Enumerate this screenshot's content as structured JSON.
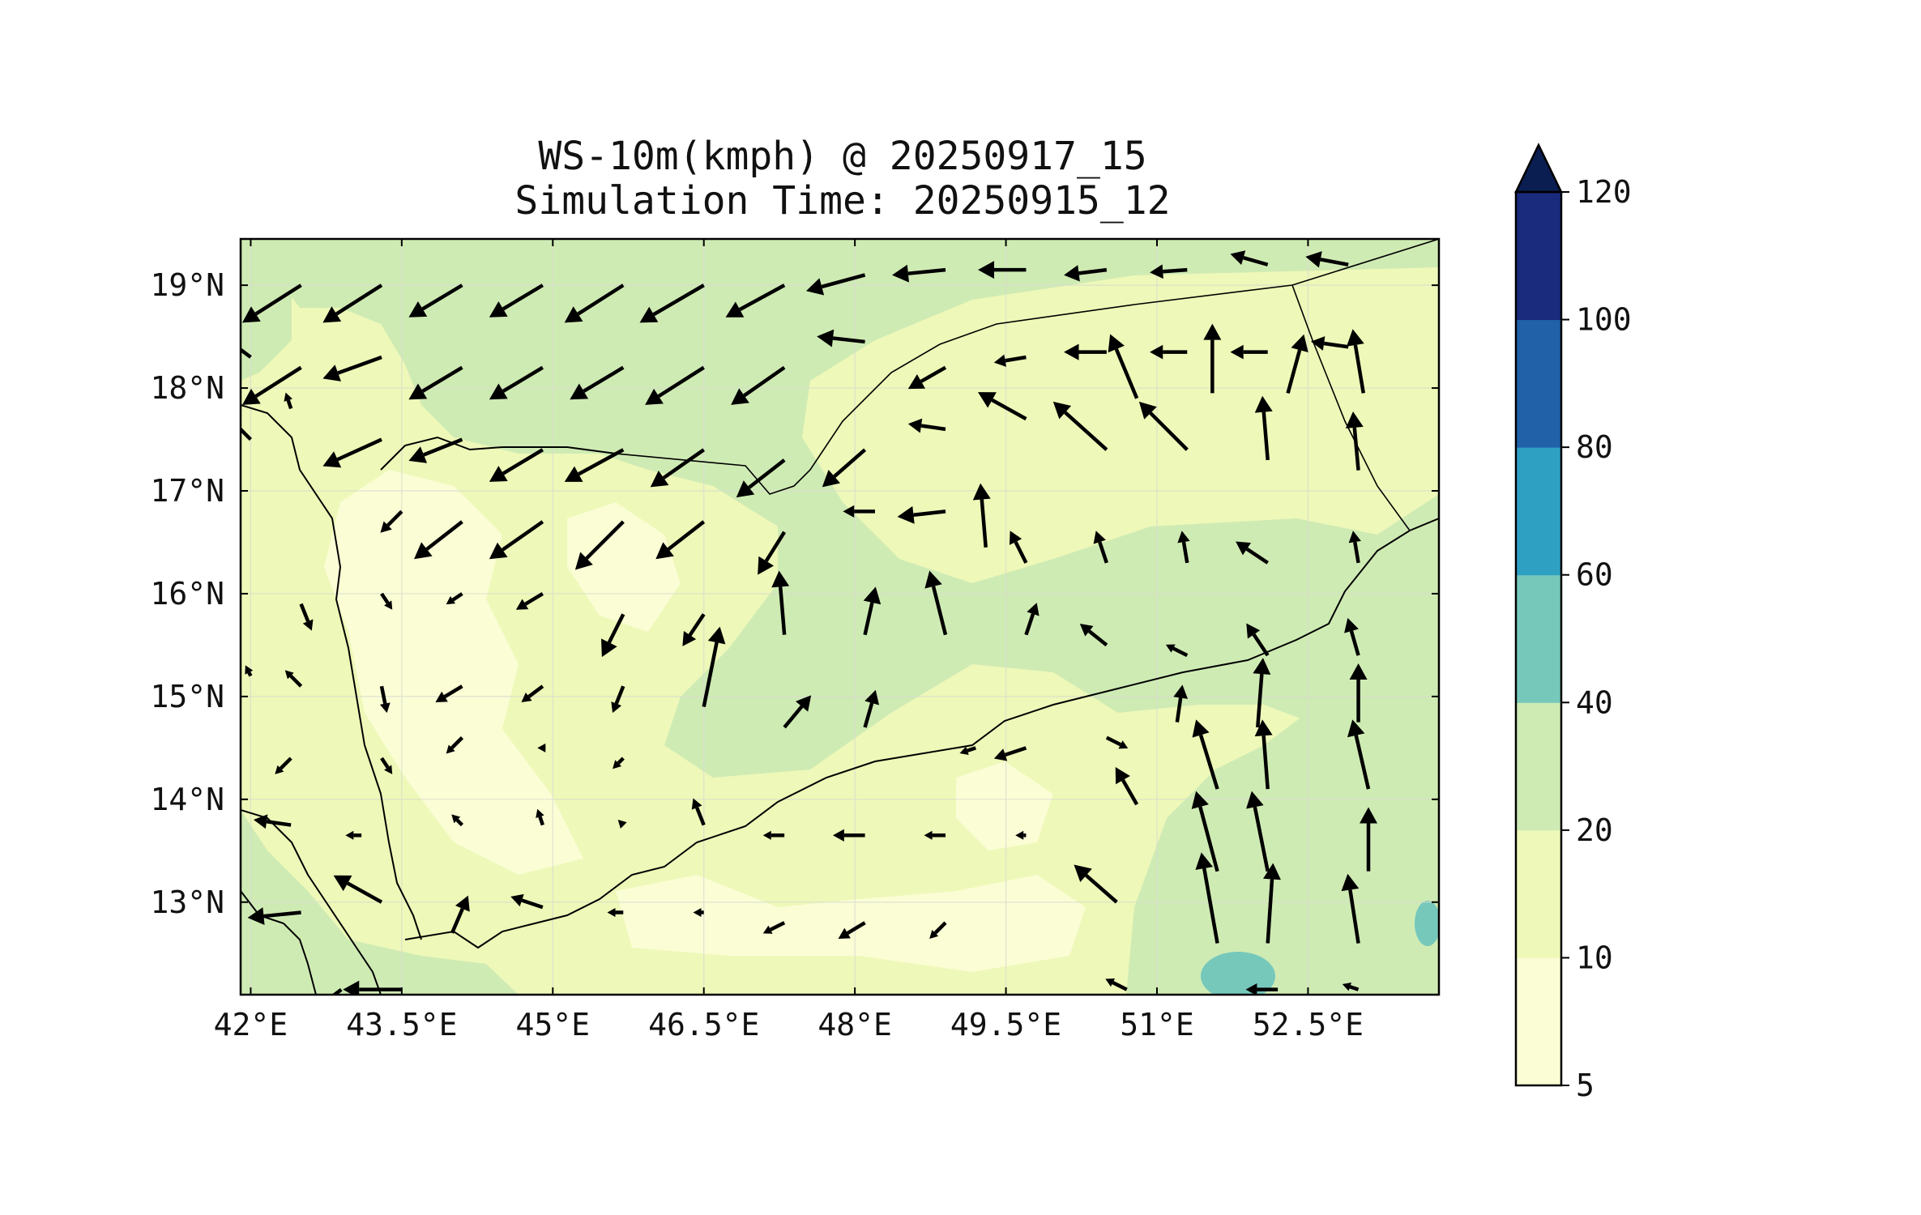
{
  "chart_data": {
    "type": "heatmap",
    "title": "WS-10m(kmph) @ 20250917_15",
    "subtitle": "Simulation Time: 20250915_12",
    "x_ticks": [
      "42°E",
      "43.5°E",
      "45°E",
      "46.5°E",
      "48°E",
      "49.5°E",
      "51°E",
      "52.5°E"
    ],
    "x_tick_values": [
      42,
      43.5,
      45,
      46.5,
      48,
      49.5,
      51,
      52.5
    ],
    "y_ticks": [
      "19°N",
      "18°N",
      "17°N",
      "16°N",
      "15°N",
      "14°N",
      "13°N"
    ],
    "y_tick_values": [
      19,
      18,
      17,
      16,
      15,
      14,
      13
    ],
    "xlim": [
      41.9,
      53.8
    ],
    "ylim": [
      12.1,
      19.45
    ],
    "grid": true,
    "colorbar": {
      "levels": [
        5,
        10,
        20,
        40,
        60,
        80,
        100,
        120
      ],
      "tick_labels": [
        "5",
        "10",
        "20",
        "40",
        "60",
        "80",
        "100",
        "120"
      ],
      "colors": [
        "#fbfdd5",
        "#eef8b8",
        "#cfebb4",
        "#76c8bb",
        "#2ea1c3",
        "#2161a8",
        "#1a2a7c"
      ],
      "extend_color": "#0b1e52",
      "extend": "max"
    },
    "background_color": "#eef8b8",
    "wind_vectors": [
      {
        "lon": 42.5,
        "lat": 19.0,
        "u": -22,
        "v": -14
      },
      {
        "lon": 43.3,
        "lat": 19.0,
        "u": -22,
        "v": -14
      },
      {
        "lon": 44.1,
        "lat": 19.0,
        "u": -20,
        "v": -12
      },
      {
        "lon": 44.9,
        "lat": 19.0,
        "u": -20,
        "v": -12
      },
      {
        "lon": 45.7,
        "lat": 19.0,
        "u": -22,
        "v": -14
      },
      {
        "lon": 46.5,
        "lat": 19.0,
        "u": -24,
        "v": -14
      },
      {
        "lon": 47.3,
        "lat": 19.0,
        "u": -22,
        "v": -12
      },
      {
        "lon": 48.1,
        "lat": 19.1,
        "u": -22,
        "v": -6
      },
      {
        "lon": 48.9,
        "lat": 19.15,
        "u": -20,
        "v": -2
      },
      {
        "lon": 49.7,
        "lat": 19.15,
        "u": -18,
        "v": 0
      },
      {
        "lon": 50.5,
        "lat": 19.15,
        "u": -16,
        "v": -2
      },
      {
        "lon": 51.3,
        "lat": 19.15,
        "u": -14,
        "v": -1
      },
      {
        "lon": 52.1,
        "lat": 19.2,
        "u": -14,
        "v": 4
      },
      {
        "lon": 52.9,
        "lat": 19.2,
        "u": -16,
        "v": 3
      },
      {
        "lon": 42.0,
        "lat": 18.3,
        "u": -8,
        "v": 6
      },
      {
        "lon": 42.5,
        "lat": 18.2,
        "u": -22,
        "v": -14
      },
      {
        "lon": 43.3,
        "lat": 18.3,
        "u": -22,
        "v": -8
      },
      {
        "lon": 44.1,
        "lat": 18.2,
        "u": -20,
        "v": -12
      },
      {
        "lon": 44.9,
        "lat": 18.2,
        "u": -20,
        "v": -12
      },
      {
        "lon": 45.7,
        "lat": 18.2,
        "u": -20,
        "v": -12
      },
      {
        "lon": 46.5,
        "lat": 18.2,
        "u": -22,
        "v": -14
      },
      {
        "lon": 47.3,
        "lat": 18.2,
        "u": -20,
        "v": -14
      },
      {
        "lon": 48.1,
        "lat": 18.45,
        "u": -18,
        "v": 2
      },
      {
        "lon": 48.9,
        "lat": 18.2,
        "u": -14,
        "v": -8
      },
      {
        "lon": 49.7,
        "lat": 18.3,
        "u": -12,
        "v": -2
      },
      {
        "lon": 50.5,
        "lat": 18.35,
        "u": -16,
        "v": 0
      },
      {
        "lon": 50.8,
        "lat": 17.9,
        "u": -10,
        "v": 24
      },
      {
        "lon": 51.3,
        "lat": 18.35,
        "u": -14,
        "v": 0
      },
      {
        "lon": 51.55,
        "lat": 17.95,
        "u": 0,
        "v": 26
      },
      {
        "lon": 52.1,
        "lat": 18.35,
        "u": -14,
        "v": 0
      },
      {
        "lon": 52.3,
        "lat": 17.95,
        "u": 6,
        "v": 22
      },
      {
        "lon": 52.9,
        "lat": 18.4,
        "u": -14,
        "v": 2
      },
      {
        "lon": 53.05,
        "lat": 17.95,
        "u": -4,
        "v": 24
      },
      {
        "lon": 42.0,
        "lat": 17.5,
        "u": -8,
        "v": 8
      },
      {
        "lon": 42.4,
        "lat": 17.8,
        "u": -2,
        "v": 6
      },
      {
        "lon": 43.3,
        "lat": 17.5,
        "u": -22,
        "v": -10
      },
      {
        "lon": 44.1,
        "lat": 17.5,
        "u": -20,
        "v": -8
      },
      {
        "lon": 44.9,
        "lat": 17.4,
        "u": -20,
        "v": -12
      },
      {
        "lon": 45.7,
        "lat": 17.4,
        "u": -22,
        "v": -12
      },
      {
        "lon": 46.5,
        "lat": 17.4,
        "u": -20,
        "v": -14
      },
      {
        "lon": 47.3,
        "lat": 17.3,
        "u": -18,
        "v": -14
      },
      {
        "lon": 48.1,
        "lat": 17.4,
        "u": -16,
        "v": -14
      },
      {
        "lon": 48.9,
        "lat": 17.6,
        "u": -14,
        "v": 2
      },
      {
        "lon": 49.7,
        "lat": 17.7,
        "u": -18,
        "v": 10
      },
      {
        "lon": 50.5,
        "lat": 17.4,
        "u": -20,
        "v": 18
      },
      {
        "lon": 51.3,
        "lat": 17.4,
        "u": -18,
        "v": 18
      },
      {
        "lon": 52.1,
        "lat": 17.3,
        "u": -2,
        "v": 24
      },
      {
        "lon": 53.0,
        "lat": 17.2,
        "u": -2,
        "v": 22
      },
      {
        "lon": 43.5,
        "lat": 16.8,
        "u": -8,
        "v": -8
      },
      {
        "lon": 44.1,
        "lat": 16.7,
        "u": -18,
        "v": -14
      },
      {
        "lon": 44.9,
        "lat": 16.7,
        "u": -20,
        "v": -14
      },
      {
        "lon": 45.7,
        "lat": 16.7,
        "u": -18,
        "v": -18
      },
      {
        "lon": 46.5,
        "lat": 16.7,
        "u": -18,
        "v": -14
      },
      {
        "lon": 47.3,
        "lat": 16.6,
        "u": -10,
        "v": -16
      },
      {
        "lon": 48.2,
        "lat": 16.8,
        "u": -12,
        "v": 0
      },
      {
        "lon": 48.9,
        "lat": 16.8,
        "u": -18,
        "v": -2
      },
      {
        "lon": 49.3,
        "lat": 16.45,
        "u": -2,
        "v": 24
      },
      {
        "lon": 49.7,
        "lat": 16.3,
        "u": -6,
        "v": 12
      },
      {
        "lon": 50.5,
        "lat": 16.3,
        "u": -4,
        "v": 12
      },
      {
        "lon": 51.3,
        "lat": 16.3,
        "u": -2,
        "v": 12
      },
      {
        "lon": 52.1,
        "lat": 16.3,
        "u": -12,
        "v": 8
      },
      {
        "lon": 53.0,
        "lat": 16.3,
        "u": -2,
        "v": 12
      },
      {
        "lon": 42.5,
        "lat": 15.9,
        "u": 4,
        "v": -10
      },
      {
        "lon": 43.3,
        "lat": 16.0,
        "u": 4,
        "v": -6
      },
      {
        "lon": 44.1,
        "lat": 16.0,
        "u": -6,
        "v": -4
      },
      {
        "lon": 44.9,
        "lat": 16.0,
        "u": -10,
        "v": -6
      },
      {
        "lon": 45.7,
        "lat": 15.8,
        "u": -8,
        "v": -16
      },
      {
        "lon": 46.5,
        "lat": 15.8,
        "u": -8,
        "v": -12
      },
      {
        "lon": 47.3,
        "lat": 15.6,
        "u": -2,
        "v": 24
      },
      {
        "lon": 48.1,
        "lat": 15.6,
        "u": 4,
        "v": 18
      },
      {
        "lon": 48.9,
        "lat": 15.6,
        "u": -6,
        "v": 24
      },
      {
        "lon": 49.7,
        "lat": 15.6,
        "u": 4,
        "v": 12
      },
      {
        "lon": 50.5,
        "lat": 15.5,
        "u": -10,
        "v": 8
      },
      {
        "lon": 51.3,
        "lat": 15.4,
        "u": -8,
        "v": 4
      },
      {
        "lon": 52.1,
        "lat": 15.4,
        "u": -8,
        "v": 12
      },
      {
        "lon": 53.0,
        "lat": 15.4,
        "u": -4,
        "v": 14
      },
      {
        "lon": 42.0,
        "lat": 15.2,
        "u": -2,
        "v": 4
      },
      {
        "lon": 42.5,
        "lat": 15.1,
        "u": -6,
        "v": 6
      },
      {
        "lon": 43.3,
        "lat": 15.1,
        "u": 2,
        "v": -10
      },
      {
        "lon": 44.1,
        "lat": 15.1,
        "u": -10,
        "v": -6
      },
      {
        "lon": 44.9,
        "lat": 15.1,
        "u": -8,
        "v": -6
      },
      {
        "lon": 45.7,
        "lat": 15.1,
        "u": -4,
        "v": -10
      },
      {
        "lon": 46.5,
        "lat": 14.9,
        "u": 6,
        "v": 30
      },
      {
        "lon": 47.3,
        "lat": 14.7,
        "u": 10,
        "v": 12
      },
      {
        "lon": 48.1,
        "lat": 14.7,
        "u": 4,
        "v": 14
      },
      {
        "lon": 51.2,
        "lat": 14.75,
        "u": 2,
        "v": 14
      },
      {
        "lon": 52.0,
        "lat": 14.7,
        "u": 2,
        "v": 26
      },
      {
        "lon": 53.0,
        "lat": 14.75,
        "u": 0,
        "v": 22
      },
      {
        "lon": 42.4,
        "lat": 14.4,
        "u": -6,
        "v": -6
      },
      {
        "lon": 43.3,
        "lat": 14.4,
        "u": 4,
        "v": -6
      },
      {
        "lon": 44.1,
        "lat": 14.6,
        "u": -6,
        "v": -6
      },
      {
        "lon": 44.9,
        "lat": 14.5,
        "u": -2,
        "v": 0
      },
      {
        "lon": 45.7,
        "lat": 14.4,
        "u": -4,
        "v": -4
      },
      {
        "lon": 49.2,
        "lat": 14.5,
        "u": -6,
        "v": -2
      },
      {
        "lon": 49.7,
        "lat": 14.5,
        "u": -12,
        "v": -4
      },
      {
        "lon": 50.5,
        "lat": 14.6,
        "u": 8,
        "v": -4
      },
      {
        "lon": 50.8,
        "lat": 13.95,
        "u": -8,
        "v": 14
      },
      {
        "lon": 51.6,
        "lat": 14.1,
        "u": -8,
        "v": 26
      },
      {
        "lon": 52.1,
        "lat": 14.1,
        "u": -2,
        "v": 26
      },
      {
        "lon": 53.1,
        "lat": 14.1,
        "u": -6,
        "v": 26
      },
      {
        "lon": 42.4,
        "lat": 13.75,
        "u": -14,
        "v": 2
      },
      {
        "lon": 43.1,
        "lat": 13.65,
        "u": -6,
        "v": 0
      },
      {
        "lon": 44.1,
        "lat": 13.75,
        "u": -4,
        "v": 4
      },
      {
        "lon": 44.9,
        "lat": 13.75,
        "u": -2,
        "v": 6
      },
      {
        "lon": 45.7,
        "lat": 13.75,
        "u": -2,
        "v": 2
      },
      {
        "lon": 46.5,
        "lat": 13.75,
        "u": -4,
        "v": 10
      },
      {
        "lon": 47.3,
        "lat": 13.65,
        "u": -8,
        "v": 0
      },
      {
        "lon": 48.1,
        "lat": 13.65,
        "u": -12,
        "v": 0
      },
      {
        "lon": 48.9,
        "lat": 13.65,
        "u": -8,
        "v": 0
      },
      {
        "lon": 49.7,
        "lat": 13.65,
        "u": -4,
        "v": 0
      },
      {
        "lon": 51.6,
        "lat": 13.3,
        "u": -8,
        "v": 30
      },
      {
        "lon": 52.1,
        "lat": 13.3,
        "u": -6,
        "v": 30
      },
      {
        "lon": 53.1,
        "lat": 13.3,
        "u": 0,
        "v": 24
      },
      {
        "lon": 42.5,
        "lat": 12.9,
        "u": -20,
        "v": -2
      },
      {
        "lon": 43.3,
        "lat": 13.0,
        "u": -18,
        "v": 10
      },
      {
        "lon": 44.0,
        "lat": 12.7,
        "u": 6,
        "v": 14
      },
      {
        "lon": 44.9,
        "lat": 12.95,
        "u": -12,
        "v": 4
      },
      {
        "lon": 45.7,
        "lat": 12.9,
        "u": -6,
        "v": 0
      },
      {
        "lon": 46.5,
        "lat": 12.9,
        "u": -4,
        "v": 0
      },
      {
        "lon": 47.3,
        "lat": 12.8,
        "u": -8,
        "v": -4
      },
      {
        "lon": 48.1,
        "lat": 12.8,
        "u": -10,
        "v": -6
      },
      {
        "lon": 48.9,
        "lat": 12.8,
        "u": -6,
        "v": -6
      },
      {
        "lon": 50.6,
        "lat": 13.0,
        "u": -16,
        "v": 14
      },
      {
        "lon": 51.6,
        "lat": 12.6,
        "u": -6,
        "v": 34
      },
      {
        "lon": 52.1,
        "lat": 12.6,
        "u": 2,
        "v": 30
      },
      {
        "lon": 53.0,
        "lat": 12.6,
        "u": -4,
        "v": 26
      },
      {
        "lon": 42.9,
        "lat": 12.15,
        "u": -8,
        "v": -6
      },
      {
        "lon": 43.5,
        "lat": 12.15,
        "u": -22,
        "v": 0
      },
      {
        "lon": 50.7,
        "lat": 12.15,
        "u": -8,
        "v": 4
      },
      {
        "lon": 52.2,
        "lat": 12.15,
        "u": -12,
        "v": 0
      },
      {
        "lon": 53.0,
        "lat": 12.15,
        "u": -6,
        "v": 2
      }
    ]
  }
}
